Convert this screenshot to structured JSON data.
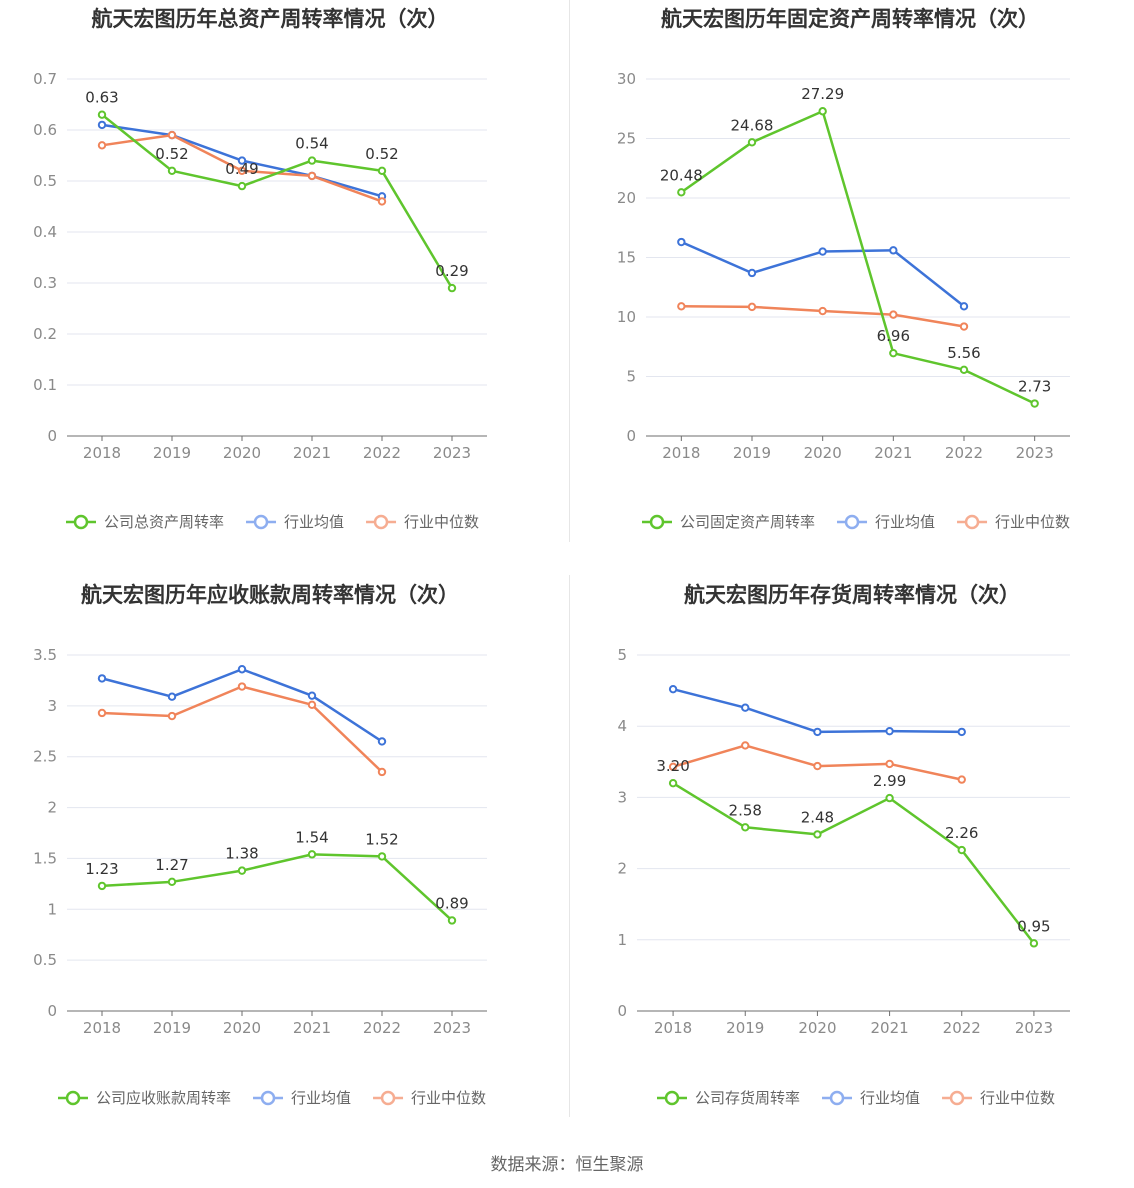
{
  "source_text": "数据来源：恒生聚源",
  "colors": {
    "company": "#5fc52d",
    "avg": "#3d73d8",
    "median": "#f0845a",
    "legend_avg": "#8eaef0",
    "legend_median": "#f6ad92",
    "grid": "#e3e6ef",
    "axis": "#6e6e6e"
  },
  "chart_data": [
    {
      "type": "line",
      "title": "航天宏图历年总资产周转率情况（次）",
      "categories": [
        "2018",
        "2019",
        "2020",
        "2021",
        "2022",
        "2023"
      ],
      "ylim": [
        0,
        0.7
      ],
      "yticks": [
        0,
        0.1,
        0.2,
        0.3,
        0.4,
        0.5,
        0.6,
        0.7
      ],
      "ytick_labels": [
        "0",
        "0.1",
        "0.2",
        "0.3",
        "0.4",
        "0.5",
        "0.6",
        "0.7"
      ],
      "grid": true,
      "legend_position": "bottom",
      "series": [
        {
          "name": "公司总资产周转率",
          "role": "company",
          "values": [
            0.63,
            0.52,
            0.49,
            0.54,
            0.52,
            0.29
          ],
          "labels": [
            "0.63",
            "0.52",
            "0.49",
            "0.54",
            "0.52",
            "0.29"
          ]
        },
        {
          "name": "行业均值",
          "role": "avg",
          "values": [
            0.61,
            0.59,
            0.54,
            0.51,
            0.47,
            null
          ]
        },
        {
          "name": "行业中位数",
          "role": "median",
          "values": [
            0.57,
            0.59,
            0.52,
            0.51,
            0.46,
            null
          ]
        }
      ]
    },
    {
      "type": "line",
      "title": "航天宏图历年固定资产周转率情况（次）",
      "categories": [
        "2018",
        "2019",
        "2020",
        "2021",
        "2022",
        "2023"
      ],
      "ylim": [
        0,
        30
      ],
      "yticks": [
        0,
        5,
        10,
        15,
        20,
        25,
        30
      ],
      "ytick_labels": [
        "0",
        "5",
        "10",
        "15",
        "20",
        "25",
        "30"
      ],
      "grid": true,
      "legend_position": "bottom",
      "series": [
        {
          "name": "公司固定资产周转率",
          "role": "company",
          "values": [
            20.48,
            24.68,
            27.29,
            6.96,
            5.56,
            2.73
          ],
          "labels": [
            "20.48",
            "24.68",
            "27.29",
            "6.96",
            "5.56",
            "2.73"
          ]
        },
        {
          "name": "行业均值",
          "role": "avg",
          "values": [
            16.3,
            13.7,
            15.5,
            15.6,
            10.9,
            null
          ]
        },
        {
          "name": "行业中位数",
          "role": "median",
          "values": [
            10.9,
            10.85,
            10.5,
            10.2,
            9.2,
            null
          ]
        }
      ]
    },
    {
      "type": "line",
      "title": "航天宏图历年应收账款周转率情况（次）",
      "categories": [
        "2018",
        "2019",
        "2020",
        "2021",
        "2022",
        "2023"
      ],
      "ylim": [
        0,
        3.5
      ],
      "yticks": [
        0,
        0.5,
        1,
        1.5,
        2,
        2.5,
        3,
        3.5
      ],
      "ytick_labels": [
        "0",
        "0.5",
        "1",
        "1.5",
        "2",
        "2.5",
        "3",
        "3.5"
      ],
      "grid": true,
      "legend_position": "bottom",
      "series": [
        {
          "name": "公司应收账款周转率",
          "role": "company",
          "values": [
            1.23,
            1.27,
            1.38,
            1.54,
            1.52,
            0.89
          ],
          "labels": [
            "1.23",
            "1.27",
            "1.38",
            "1.54",
            "1.52",
            "0.89"
          ]
        },
        {
          "name": "行业均值",
          "role": "avg",
          "values": [
            3.27,
            3.09,
            3.36,
            3.1,
            2.65,
            null
          ]
        },
        {
          "name": "行业中位数",
          "role": "median",
          "values": [
            2.93,
            2.9,
            3.19,
            3.01,
            2.35,
            null
          ]
        }
      ]
    },
    {
      "type": "line",
      "title": "航天宏图历年存货周转率情况（次）",
      "categories": [
        "2018",
        "2019",
        "2020",
        "2021",
        "2022",
        "2023"
      ],
      "ylim": [
        0,
        5
      ],
      "yticks": [
        0,
        1,
        2,
        3,
        4,
        5
      ],
      "ytick_labels": [
        "0",
        "1",
        "2",
        "3",
        "4",
        "5"
      ],
      "grid": true,
      "legend_position": "bottom",
      "series": [
        {
          "name": "公司存货周转率",
          "role": "company",
          "values": [
            3.2,
            2.58,
            2.48,
            2.99,
            2.26,
            0.95
          ],
          "labels": [
            "3.20",
            "2.58",
            "2.48",
            "2.99",
            "2.26",
            "0.95"
          ]
        },
        {
          "name": "行业均值",
          "role": "avg",
          "values": [
            4.52,
            4.26,
            3.92,
            3.93,
            3.92,
            null
          ]
        },
        {
          "name": "行业中位数",
          "role": "median",
          "values": [
            3.43,
            3.73,
            3.44,
            3.47,
            3.25,
            null
          ]
        }
      ]
    }
  ]
}
